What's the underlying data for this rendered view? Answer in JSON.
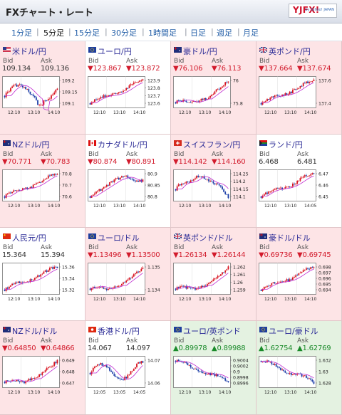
{
  "header": {
    "title": "FXチャート・レート",
    "logo": "YJFX!",
    "logo_sub": "by Yahoo! JAPAN"
  },
  "tabs": [
    {
      "label": "1分足",
      "active": false
    },
    {
      "label": "5分足",
      "active": true
    },
    {
      "label": "15分足",
      "active": false
    },
    {
      "label": "30分足",
      "active": false
    },
    {
      "label": "1時間足",
      "active": false
    },
    {
      "label": "日足",
      "active": false
    },
    {
      "label": "週足",
      "active": false
    },
    {
      "label": "月足",
      "active": false
    }
  ],
  "labels": {
    "bid": "Bid",
    "ask": "Ask"
  },
  "panels": [
    {
      "name": "米ドル/円",
      "flag": "us",
      "bid": "109.134",
      "ask": "109.136",
      "dir": "none",
      "bg": "pink",
      "ticks": [
        "109.2",
        "109.15",
        "109.1"
      ],
      "times": [
        "12:10",
        "13:10",
        "14:10"
      ],
      "trend": "wave-up-dip"
    },
    {
      "name": "ユーロ/円",
      "flag": "eu",
      "bid": "▼123.867",
      "ask": "▼123.872",
      "dir": "down",
      "bg": "white",
      "ticks": [
        "123.9",
        "123.8",
        "123.7",
        "123.6"
      ],
      "times": [
        "12:10",
        "13:10",
        "14:10"
      ],
      "trend": "up"
    },
    {
      "name": "豪ドル/円",
      "flag": "au",
      "bid": "▼76.106",
      "ask": "▼76.113",
      "dir": "down",
      "bg": "pink",
      "ticks": [
        "76",
        "75.8"
      ],
      "times": [
        "12:10",
        "13:10",
        "14:10"
      ],
      "trend": "up-late"
    },
    {
      "name": "英ポンド/円",
      "flag": "gb",
      "bid": "▼137.664",
      "ask": "▼137.674",
      "dir": "down",
      "bg": "pink",
      "ticks": [
        "137.6",
        "137.4"
      ],
      "times": [
        "12:10",
        "13:10",
        "14:10"
      ],
      "trend": "up"
    },
    {
      "name": "NZドル/円",
      "flag": "nz",
      "bid": "▼70.771",
      "ask": "▼70.783",
      "dir": "down",
      "bg": "pink",
      "ticks": [
        "70.8",
        "70.7",
        "70.6"
      ],
      "times": [
        "12:10",
        "13:10",
        "14:10"
      ],
      "trend": "up"
    },
    {
      "name": "カナダドル/円",
      "flag": "ca",
      "bid": "▼80.874",
      "ask": "▼80.891",
      "dir": "down",
      "bg": "white",
      "ticks": [
        "80.9",
        "80.85",
        "80.8"
      ],
      "times": [
        "12:10",
        "13:10",
        "14:10"
      ],
      "trend": "up-flat"
    },
    {
      "name": "スイスフラン/円",
      "flag": "ch",
      "bid": "▼114.142",
      "ask": "▼114.160",
      "dir": "down",
      "bg": "pink",
      "ticks": [
        "114.25",
        "114.2",
        "114.15",
        "114.1"
      ],
      "times": [
        "12:10",
        "13:10",
        "14:10"
      ],
      "trend": "hump-down"
    },
    {
      "name": "ランド/円",
      "flag": "za",
      "bid": "6.468",
      "ask": "6.481",
      "dir": "none",
      "bg": "white",
      "ticks": [
        "6.47",
        "6.46",
        "6.45"
      ],
      "times": [
        "12:10",
        "13:10",
        "14:05"
      ],
      "trend": "up"
    },
    {
      "name": "人民元/円",
      "flag": "cn",
      "bid": "15.364",
      "ask": "15.394",
      "dir": "none",
      "bg": "white",
      "ticks": [
        "15.36",
        "15.34",
        "15.32"
      ],
      "times": [
        "12:10",
        "13:10",
        "14:10"
      ],
      "trend": "up"
    },
    {
      "name": "ユーロ/ドル",
      "flag": "eu",
      "bid": "▼1.13496",
      "ask": "▼1.13500",
      "dir": "down",
      "bg": "pink",
      "ticks": [
        "1.135",
        "1.134"
      ],
      "times": [
        "12:10",
        "13:10",
        "14:10"
      ],
      "trend": "up-late"
    },
    {
      "name": "英ポンド/ドル",
      "flag": "gb",
      "bid": "▼1.26134",
      "ask": "▼1.26144",
      "dir": "down",
      "bg": "pink",
      "ticks": [
        "1.262",
        "1.261",
        "1.26",
        "1.259"
      ],
      "times": [
        "12:10",
        "13:10",
        "14:10"
      ],
      "trend": "up-late"
    },
    {
      "name": "豪ドル/ドル",
      "flag": "au",
      "bid": "▼0.69736",
      "ask": "▼0.69745",
      "dir": "down",
      "bg": "pink",
      "ticks": [
        "0.698",
        "0.697",
        "0.696",
        "0.695",
        "0.694"
      ],
      "times": [
        "12:10",
        "13:10",
        "14:10"
      ],
      "trend": "up"
    },
    {
      "name": "NZドル/ドル",
      "flag": "nz",
      "bid": "▼0.64850",
      "ask": "▼0.64866",
      "dir": "down",
      "bg": "pink",
      "ticks": [
        "0.649",
        "0.648",
        "0.647"
      ],
      "times": [
        "12:10",
        "13:10",
        "14:10"
      ],
      "trend": "up-late"
    },
    {
      "name": "香港ドル/円",
      "flag": "hk",
      "bid": "14.067",
      "ask": "14.097",
      "dir": "none",
      "bg": "white",
      "ticks": [
        "14.07",
        "14.06"
      ],
      "times": [
        "12:05",
        "13:05",
        "14:05"
      ],
      "trend": "wave"
    },
    {
      "name": "ユーロ/英ポンド",
      "flag": "eu",
      "bid": "▲0.89978",
      "ask": "▲0.89988",
      "dir": "up",
      "bg": "green",
      "ticks": [
        "0.9004",
        "0.9002",
        "0.9",
        "0.8998",
        "0.8996"
      ],
      "times": [
        "12:10",
        "13:10",
        "14:10"
      ],
      "trend": "down"
    },
    {
      "name": "ユーロ/豪ドル",
      "flag": "eu",
      "bid": "▲1.62754",
      "ask": "▲1.62769",
      "dir": "up",
      "bg": "green",
      "ticks": [
        "1.632",
        "1.63",
        "1.628"
      ],
      "times": [
        "12:10",
        "13:10",
        "14:10"
      ],
      "trend": "down"
    }
  ]
}
